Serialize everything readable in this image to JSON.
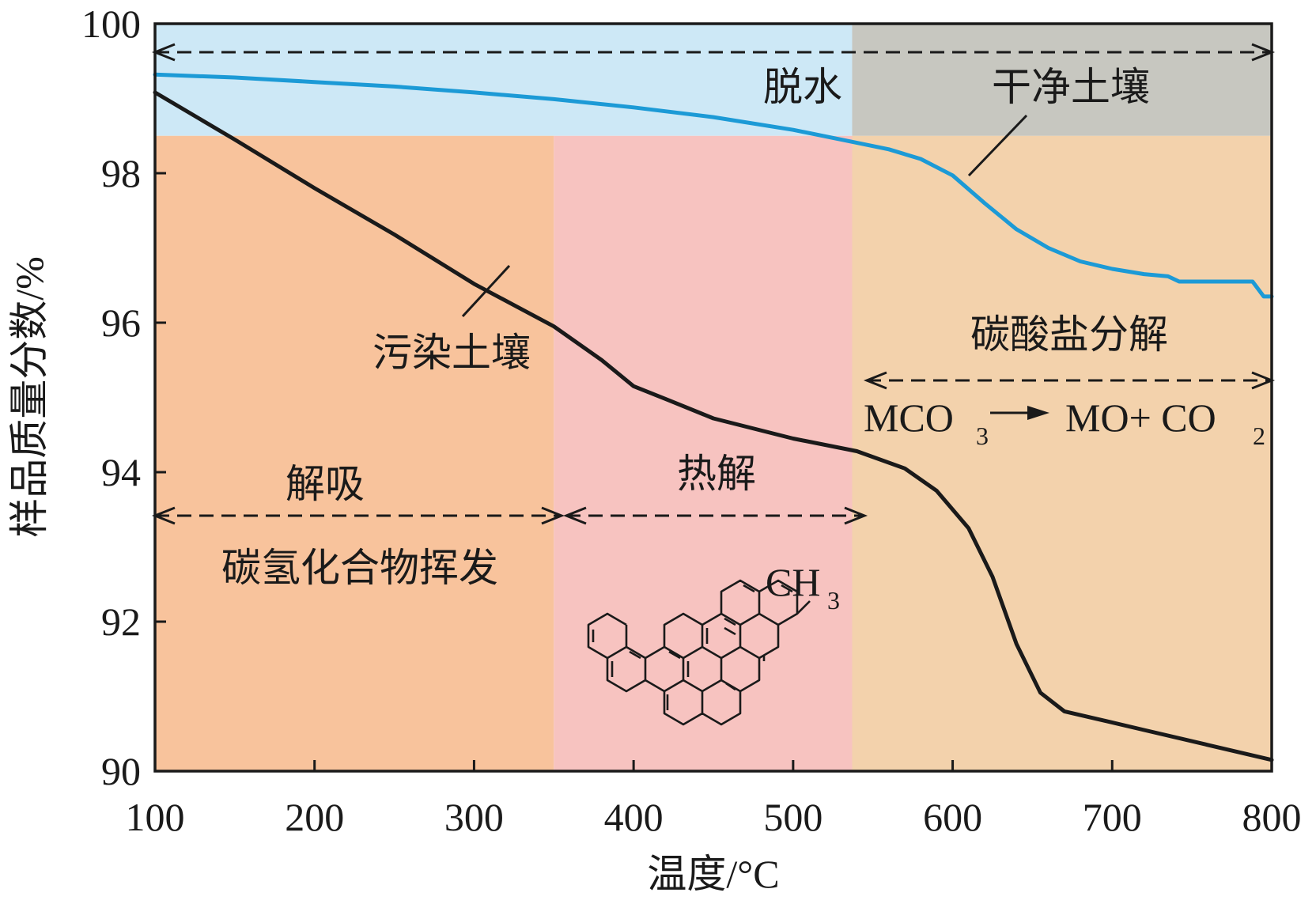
{
  "chart_data": {
    "type": "line",
    "xlabel": "温度/°C",
    "ylabel": "样品质量分数/%",
    "xlim": [
      100,
      800
    ],
    "ylim": [
      90,
      100
    ],
    "x_ticks": [
      "100",
      "200",
      "300",
      "400",
      "500",
      "600",
      "700",
      "800"
    ],
    "y_ticks": [
      "90",
      "92",
      "94",
      "96",
      "98",
      "100"
    ],
    "x_tick_values": [
      100,
      200,
      300,
      400,
      500,
      600,
      700,
      800
    ],
    "y_tick_values": [
      90,
      92,
      94,
      96,
      98,
      100
    ],
    "grid": false,
    "series": [
      {
        "name": "干净土壤",
        "color": "#1c9ad6",
        "x": [
          100,
          150,
          200,
          250,
          300,
          350,
          400,
          450,
          500,
          537,
          560,
          580,
          600,
          620,
          640,
          660,
          680,
          700,
          720,
          735,
          742,
          760,
          780,
          788,
          795,
          800
        ],
        "y": [
          99.32,
          99.28,
          99.22,
          99.16,
          99.08,
          98.99,
          98.88,
          98.75,
          98.58,
          98.42,
          98.32,
          98.19,
          97.97,
          97.6,
          97.25,
          97.0,
          96.82,
          96.72,
          96.65,
          96.62,
          96.55,
          96.55,
          96.55,
          96.55,
          96.35,
          96.35
        ]
      },
      {
        "name": "污染土壤",
        "color": "#1a1a1a",
        "x": [
          100,
          150,
          200,
          250,
          300,
          350,
          380,
          400,
          420,
          450,
          500,
          540,
          570,
          590,
          610,
          625,
          640,
          655,
          670,
          690,
          720,
          760,
          800
        ],
        "y": [
          99.08,
          98.45,
          97.8,
          97.18,
          96.52,
          95.95,
          95.5,
          95.15,
          94.98,
          94.72,
          94.45,
          94.28,
          94.05,
          93.75,
          93.25,
          92.6,
          91.7,
          91.05,
          90.8,
          90.7,
          90.55,
          90.35,
          90.15
        ]
      }
    ],
    "regions": [
      {
        "x": [
          100,
          800
        ],
        "y": [
          98.5,
          100
        ],
        "color": "#cde8f6",
        "label": "脱水"
      },
      {
        "x": [
          537,
          800
        ],
        "y": [
          98.5,
          100
        ],
        "color": "#c7c7c0"
      },
      {
        "x": [
          100,
          350
        ],
        "y": [
          90,
          98.5
        ],
        "color": "#f8c39c"
      },
      {
        "x": [
          350,
          537
        ],
        "y": [
          90,
          98.5
        ],
        "color": "#f7c3c0"
      },
      {
        "x": [
          537,
          800
        ],
        "y": [
          90,
          98.5
        ],
        "color": "#f3d2ac"
      }
    ],
    "annotations": {
      "dehydration": "脱水",
      "clean_soil": "干净土壤",
      "contaminated_soil": "污染土壤",
      "desorption": "解吸",
      "hydrocarbon_volatilization": "碳氢化合物挥发",
      "pyrolysis": "热解",
      "carbonate_decomposition": "碳酸盐分解",
      "reaction_left": "MCO",
      "reaction_left_sub": "3",
      "reaction_right_a": "MO+ CO",
      "reaction_right_sub": "2",
      "methyl_group": "CH",
      "methyl_group_sub": "3"
    }
  }
}
